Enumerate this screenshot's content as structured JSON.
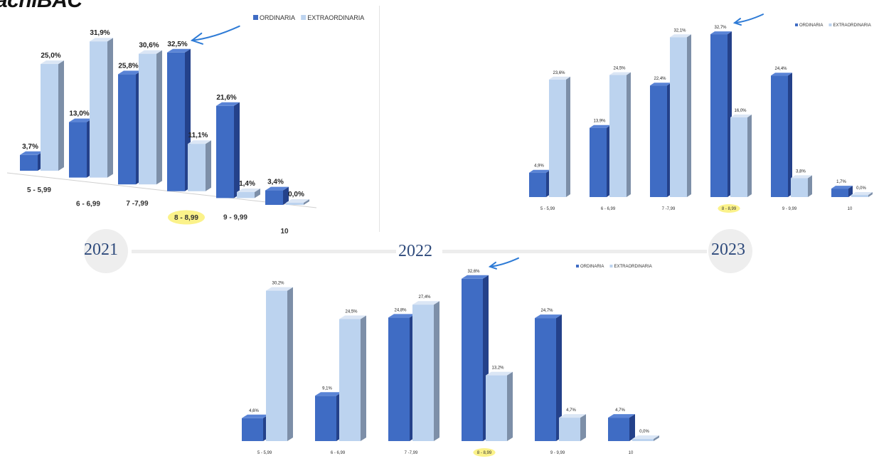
{
  "logo": {
    "text": "achiBAC"
  },
  "colors": {
    "ordinaria": "#3f6cc4",
    "ordinaria_side": "#24418a",
    "ordinaria_top": "#5a84d6",
    "extraordinaria": "#bcd3ef",
    "extraordinaria_side": "#7d8fa8",
    "extraordinaria_top": "#dbe6f5",
    "annotation": "#2e7bd6",
    "highlight": "#fbf28a"
  },
  "timeline": {
    "years": [
      "2021",
      "2022",
      "2023"
    ]
  },
  "chart_data": [
    {
      "id": "2021",
      "type": "bar",
      "categories": [
        "5 - 5,99",
        "6 - 6,99",
        "7 -7,99",
        "8 - 8,99",
        "9 - 9,99",
        "10"
      ],
      "series": [
        {
          "name": "ORDINARIA",
          "values": [
            3.7,
            13.0,
            25.8,
            32.5,
            21.6,
            3.4
          ],
          "labels": [
            "3,7%",
            "13,0%",
            "25,8%",
            "32,5%",
            "21,6%",
            "3,4%"
          ]
        },
        {
          "name": "EXTRAORDINARIA",
          "values": [
            25.0,
            31.9,
            30.6,
            11.1,
            1.4,
            0.0
          ],
          "labels": [
            "25,0%",
            "31,9%",
            "30,6%",
            "11,1%",
            "1,4%",
            "0,0%"
          ]
        }
      ],
      "highlighted_category": "8 - 8,99",
      "legend_position": "top-right",
      "ylim": [
        0,
        35
      ]
    },
    {
      "id": "2023",
      "type": "bar",
      "categories": [
        "5 - 5,99",
        "6 - 6,99",
        "7 -7,99",
        "8 - 8,99",
        "9 - 9,99",
        "10"
      ],
      "series": [
        {
          "name": "ORDINARIA",
          "values": [
            4.9,
            13.9,
            22.4,
            32.7,
            24.4,
            1.7
          ],
          "labels": [
            "4,9%",
            "13,9%",
            "22,4%",
            "32,7%",
            "24,4%",
            "1,7%"
          ]
        },
        {
          "name": "EXTRAORDINARIA",
          "values": [
            23.6,
            24.5,
            32.1,
            16.0,
            3.8,
            0.0
          ],
          "labels": [
            "23,6%",
            "24,5%",
            "32,1%",
            "16,0%",
            "3,8%",
            "0,0%"
          ]
        }
      ],
      "highlighted_category": "8 - 8,99",
      "legend_position": "top-right",
      "ylim": [
        0,
        35
      ]
    },
    {
      "id": "2022",
      "type": "bar",
      "categories": [
        "5 - 5,99",
        "6 - 6,99",
        "7 -7,99",
        "8 - 8,99",
        "9 - 9,99",
        "10"
      ],
      "series": [
        {
          "name": "ORDINARIA",
          "values": [
            4.6,
            9.1,
            24.8,
            32.6,
            24.7,
            4.7
          ],
          "labels": [
            "4,6%",
            "9,1%",
            "24,8%",
            "32,6%",
            "24,7%",
            "4,7%"
          ]
        },
        {
          "name": "EXTRAORDINARIA",
          "values": [
            30.2,
            24.5,
            27.4,
            13.2,
            4.7,
            0.0
          ],
          "labels": [
            "30,2%",
            "24,5%",
            "27,4%",
            "13,2%",
            "4,7%",
            "0,0%"
          ]
        }
      ],
      "highlighted_category": "8 - 8,99",
      "legend_position": "top-right",
      "ylim": [
        0,
        35
      ]
    }
  ]
}
